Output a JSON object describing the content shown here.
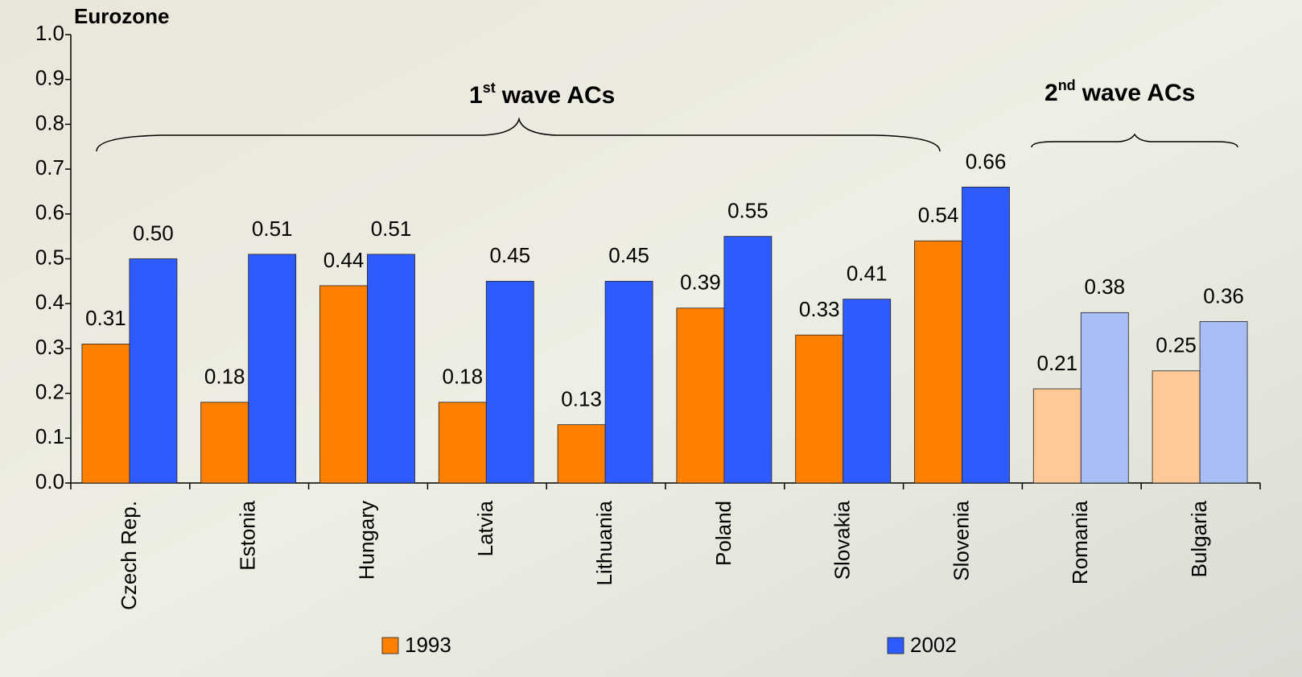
{
  "chart_data": {
    "type": "bar",
    "y_label": "Eurozone",
    "annotations": [
      {
        "number": "1",
        "suffix": "st",
        "text": "wave ACs"
      },
      {
        "number": "2",
        "suffix": "nd",
        "text": "wave ACs"
      }
    ],
    "categories": [
      "Czech Rep.",
      "Estonia",
      "Hungary",
      "Latvia",
      "Lithuania",
      "Poland",
      "Slovakia",
      "Slovenia",
      "Romania",
      "Bulgaria"
    ],
    "series": [
      {
        "name": "1993",
        "color": "#ff7f00",
        "colors": [
          "#ff7f00",
          "#ff7f00",
          "#ff7f00",
          "#ff7f00",
          "#ff7f00",
          "#ff7f00",
          "#ff7f00",
          "#ff7f00",
          "#ffc896",
          "#ffc896"
        ],
        "values": [
          0.31,
          0.18,
          0.44,
          0.18,
          0.13,
          0.39,
          0.33,
          0.54,
          0.21,
          0.25
        ],
        "value_labels": [
          "0.31",
          "0.18",
          "0.44",
          "0.18",
          "0.13",
          "0.39",
          "0.33",
          "0.54",
          "0.21",
          "0.25"
        ]
      },
      {
        "name": "2002",
        "color": "#2e5bff",
        "colors": [
          "#2e5bff",
          "#2e5bff",
          "#2e5bff",
          "#2e5bff",
          "#2e5bff",
          "#2e5bff",
          "#2e5bff",
          "#2e5bff",
          "#a9bdf5",
          "#a9bdf5"
        ],
        "values": [
          0.5,
          0.51,
          0.51,
          0.45,
          0.45,
          0.55,
          0.41,
          0.66,
          0.38,
          0.36
        ],
        "value_labels": [
          "0.50",
          "0.51",
          "0.51",
          "0.45",
          "0.45",
          "0.55",
          "0.41",
          "0.66",
          "0.38",
          "0.36"
        ]
      }
    ],
    "ylim": [
      0,
      1
    ],
    "yticks": [
      {
        "value": 0,
        "label": "0.0"
      },
      0.1,
      0.2,
      0.3,
      0.4,
      0.5,
      0.6,
      0.7,
      0.8,
      0.9,
      {
        "value": 1,
        "label": "1.0"
      }
    ],
    "grid": false,
    "legend": "bottom"
  }
}
